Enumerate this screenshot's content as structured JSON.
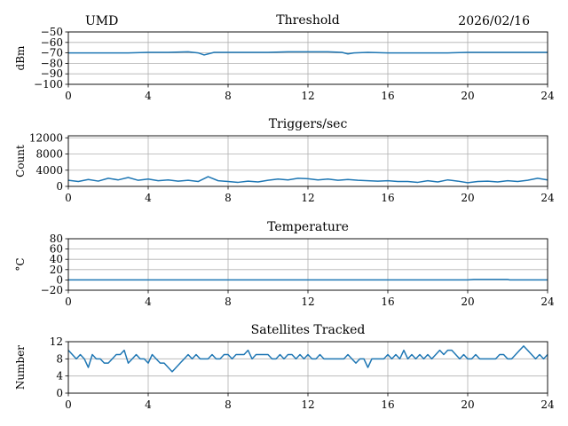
{
  "header": {
    "left": "UMD",
    "right": "2026/02/16"
  },
  "chart_data": [
    {
      "type": "line",
      "title": "Threshold",
      "ylabel": "dBm",
      "xlim": [
        0,
        24
      ],
      "ylim": [
        -100,
        -50
      ],
      "xticks": [
        0,
        4,
        8,
        12,
        16,
        20,
        24
      ],
      "yticks": [
        -100,
        -90,
        -80,
        -70,
        -60,
        -50
      ],
      "grid": true,
      "series": [
        {
          "x": [
            0,
            1,
            2,
            3,
            4,
            5,
            6,
            6.5,
            6.8,
            7,
            7.3,
            8,
            9,
            10,
            11,
            12,
            13,
            13.7,
            14,
            14.3,
            15,
            16,
            17,
            18,
            19,
            20,
            21,
            22,
            23,
            24
          ],
          "y": [
            -70,
            -70,
            -70,
            -70,
            -69.5,
            -69.5,
            -69,
            -70,
            -72,
            -71,
            -69.5,
            -69.5,
            -69.5,
            -69.5,
            -69,
            -69,
            -69,
            -69.5,
            -71,
            -70,
            -69.5,
            -70,
            -70,
            -70,
            -70,
            -69.5,
            -69.5,
            -69.5,
            -69.5,
            -69.5
          ]
        }
      ]
    },
    {
      "type": "line",
      "title": "Triggers/sec",
      "ylabel": "Count",
      "xlim": [
        0,
        24
      ],
      "ylim": [
        0,
        12500
      ],
      "xticks": [
        0,
        4,
        8,
        12,
        16,
        20,
        24
      ],
      "yticks": [
        0,
        4000,
        8000,
        12000
      ],
      "grid": true,
      "series": [
        {
          "x": [
            0,
            0.5,
            1,
            1.5,
            2,
            2.5,
            3,
            3.5,
            4,
            4.5,
            5,
            5.5,
            6,
            6.5,
            7,
            7.5,
            8,
            8.5,
            9,
            9.5,
            10,
            10.5,
            11,
            11.5,
            12,
            12.5,
            13,
            13.5,
            14,
            14.5,
            15,
            15.5,
            16,
            16.5,
            17,
            17.5,
            18,
            18.5,
            19,
            19.5,
            20,
            20.5,
            21,
            21.5,
            22,
            22.5,
            23,
            23.5,
            24
          ],
          "y": [
            1500,
            1200,
            1700,
            1300,
            2000,
            1600,
            2200,
            1500,
            1800,
            1400,
            1600,
            1300,
            1500,
            1200,
            2400,
            1400,
            1200,
            1000,
            1300,
            1100,
            1500,
            1800,
            1600,
            2000,
            1900,
            1600,
            1800,
            1500,
            1700,
            1500,
            1400,
            1300,
            1400,
            1200,
            1200,
            1000,
            1400,
            1100,
            1600,
            1300,
            900,
            1200,
            1300,
            1100,
            1400,
            1200,
            1500,
            2000,
            1600
          ]
        }
      ]
    },
    {
      "type": "line",
      "title": "Temperature",
      "ylabel": "°C",
      "xlim": [
        0,
        24
      ],
      "ylim": [
        -20,
        80
      ],
      "xticks": [
        0,
        4,
        8,
        12,
        16,
        20,
        24
      ],
      "yticks": [
        -20,
        0,
        20,
        40,
        60,
        80
      ],
      "grid": true,
      "series": [
        {
          "x": [
            0,
            4,
            8,
            12,
            16,
            20,
            20.3,
            22,
            22.1,
            24
          ],
          "y": [
            0,
            0,
            0,
            0,
            0,
            0,
            1,
            1,
            0,
            0
          ]
        }
      ]
    },
    {
      "type": "line",
      "title": "Satellites Tracked",
      "ylabel": "Number",
      "xlim": [
        0,
        24
      ],
      "ylim": [
        0,
        12
      ],
      "xticks": [
        0,
        4,
        8,
        12,
        16,
        20,
        24
      ],
      "yticks": [
        0,
        4,
        8,
        12
      ],
      "grid": true,
      "series": [
        {
          "x": [
            0,
            0.2,
            0.4,
            0.6,
            0.8,
            1.0,
            1.2,
            1.4,
            1.6,
            1.8,
            2.0,
            2.2,
            2.4,
            2.6,
            2.8,
            3.0,
            3.2,
            3.4,
            3.6,
            3.8,
            4.0,
            4.2,
            4.4,
            4.6,
            4.8,
            5.0,
            5.2,
            5.4,
            5.6,
            5.8,
            6.0,
            6.2,
            6.4,
            6.6,
            6.8,
            7.0,
            7.2,
            7.4,
            7.6,
            7.8,
            8.0,
            8.2,
            8.4,
            8.6,
            8.8,
            9.0,
            9.2,
            9.4,
            9.6,
            9.8,
            10.0,
            10.2,
            10.4,
            10.6,
            10.8,
            11.0,
            11.2,
            11.4,
            11.6,
            11.8,
            12.0,
            12.2,
            12.4,
            12.6,
            12.8,
            13.0,
            13.2,
            13.4,
            13.6,
            13.8,
            14.0,
            14.2,
            14.4,
            14.6,
            14.8,
            15.0,
            15.2,
            15.4,
            15.6,
            15.8,
            16.0,
            16.2,
            16.4,
            16.6,
            16.8,
            17.0,
            17.2,
            17.4,
            17.6,
            17.8,
            18.0,
            18.2,
            18.4,
            18.6,
            18.8,
            19.0,
            19.2,
            19.4,
            19.6,
            19.8,
            20.0,
            20.2,
            20.4,
            20.6,
            20.8,
            21.0,
            21.2,
            21.4,
            21.6,
            21.8,
            22.0,
            22.2,
            22.4,
            22.6,
            22.8,
            23.0,
            23.2,
            23.4,
            23.6,
            23.8,
            24.0
          ],
          "y": [
            10,
            9,
            8,
            9,
            8,
            6,
            9,
            8,
            8,
            7,
            7,
            8,
            9,
            9,
            10,
            7,
            8,
            9,
            8,
            8,
            7,
            9,
            8,
            7,
            7,
            6,
            5,
            6,
            7,
            8,
            9,
            8,
            9,
            8,
            8,
            8,
            9,
            8,
            8,
            9,
            9,
            8,
            9,
            9,
            9,
            10,
            8,
            9,
            9,
            9,
            9,
            8,
            8,
            9,
            8,
            9,
            9,
            8,
            9,
            8,
            9,
            8,
            8,
            9,
            8,
            8,
            8,
            8,
            8,
            8,
            9,
            8,
            7,
            8,
            8,
            6,
            8,
            8,
            8,
            8,
            9,
            8,
            9,
            8,
            10,
            8,
            9,
            8,
            9,
            8,
            9,
            8,
            9,
            10,
            9,
            10,
            10,
            9,
            8,
            9,
            8,
            8,
            9,
            8,
            8,
            8,
            8,
            8,
            9,
            9,
            8,
            8,
            9,
            10,
            11,
            10,
            9,
            8,
            9,
            8,
            9
          ]
        }
      ]
    }
  ]
}
